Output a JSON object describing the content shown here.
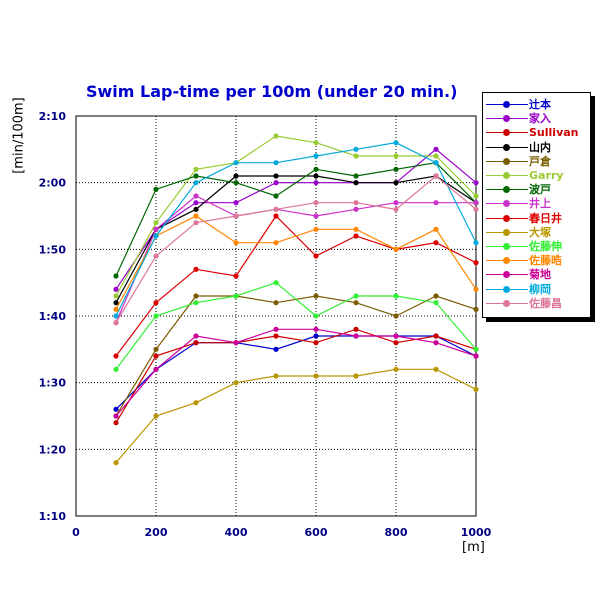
{
  "chart_data": {
    "type": "line",
    "title": "Swim Lap-time per 100m (under 20 min.)",
    "ylabel": "[min/100m]",
    "xlabel": "[m]",
    "x": [
      100,
      200,
      300,
      400,
      500,
      600,
      700,
      800,
      900,
      1000
    ],
    "xlim": [
      0,
      1000
    ],
    "ylim": [
      70,
      130
    ],
    "x_ticks": [
      "0",
      "200",
      "400",
      "600",
      "800",
      "1000"
    ],
    "y_ticks": [
      "1:10",
      "1:20",
      "1:30",
      "1:40",
      "1:50",
      "2:00",
      "2:10"
    ],
    "y_tick_values": [
      70,
      80,
      90,
      100,
      110,
      120,
      130
    ],
    "grid": true,
    "legend_position": "right",
    "series": [
      {
        "name": "辻本",
        "color": "#0000cc",
        "values": [
          86,
          92,
          96,
          96,
          95,
          97,
          97,
          97,
          97,
          94
        ]
      },
      {
        "name": "家入",
        "color": "#9900cc",
        "values": [
          104,
          113,
          117,
          117,
          120,
          120,
          120,
          120,
          125,
          120
        ]
      },
      {
        "name": "Sullivan",
        "color": "#cc0000",
        "values": [
          84,
          94,
          96,
          96,
          97,
          96,
          98,
          96,
          97,
          95
        ]
      },
      {
        "name": "山内",
        "color": "#000000",
        "values": [
          102,
          113,
          116,
          121,
          121,
          121,
          120,
          120,
          121,
          117
        ]
      },
      {
        "name": "戸倉",
        "color": "#7a5c00",
        "values": [
          85,
          95,
          103,
          103,
          102,
          103,
          102,
          100,
          103,
          101
        ]
      },
      {
        "name": "Garry",
        "color": "#99cc33",
        "values": [
          103,
          114,
          122,
          123,
          127,
          126,
          124,
          124,
          124,
          118
        ]
      },
      {
        "name": "波戸",
        "color": "#006600",
        "values": [
          106,
          119,
          121,
          120,
          118,
          122,
          121,
          122,
          123,
          117
        ]
      },
      {
        "name": "井上",
        "color": "#cc33cc",
        "values": [
          99,
          113,
          118,
          115,
          116,
          115,
          116,
          117,
          117,
          117
        ]
      },
      {
        "name": "春日井",
        "color": "#dd0000",
        "values": [
          94,
          102,
          107,
          106,
          115,
          109,
          112,
          110,
          111,
          108
        ]
      },
      {
        "name": "大塚",
        "color": "#b89600",
        "values": [
          78,
          85,
          87,
          90,
          91,
          91,
          91,
          92,
          92,
          89
        ]
      },
      {
        "name": "佐藤伸",
        "color": "#33ee33",
        "values": [
          92,
          100,
          102,
          103,
          105,
          100,
          103,
          103,
          102,
          95
        ]
      },
      {
        "name": "佐藤晧",
        "color": "#ff8800",
        "values": [
          101,
          112,
          115,
          111,
          111,
          113,
          113,
          110,
          113,
          104
        ]
      },
      {
        "name": "菊地",
        "color": "#cc0099",
        "values": [
          85,
          92,
          97,
          96,
          98,
          98,
          97,
          97,
          96,
          94
        ]
      },
      {
        "name": "柳岡",
        "color": "#00aadd",
        "values": [
          100,
          112,
          120,
          123,
          123,
          124,
          125,
          126,
          123,
          111
        ]
      },
      {
        "name": "佐藤昌",
        "color": "#dd7799",
        "values": [
          99,
          109,
          114,
          115,
          116,
          117,
          117,
          116,
          121,
          116
        ]
      }
    ]
  }
}
